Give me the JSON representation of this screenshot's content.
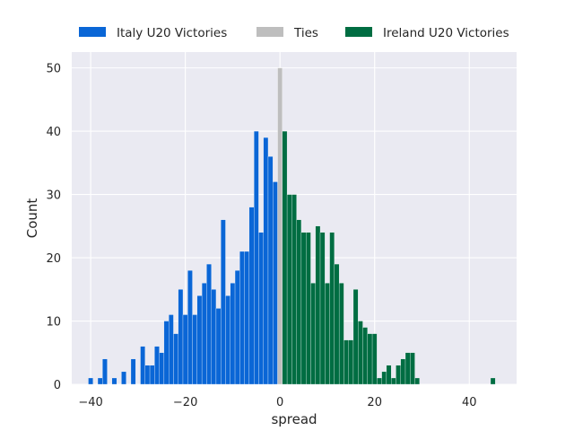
{
  "chart_data": {
    "type": "bar",
    "xlabel": "spread",
    "ylabel": "Count",
    "xlim": [
      -44,
      50
    ],
    "ylim": [
      0,
      52.5
    ],
    "xticks": [
      -40,
      -20,
      0,
      20,
      40
    ],
    "yticks": [
      0,
      10,
      20,
      30,
      40,
      50
    ],
    "xtick_labels": [
      "−40",
      "−20",
      "0",
      "20",
      "40"
    ],
    "ytick_labels": [
      "0",
      "10",
      "20",
      "30",
      "40",
      "50"
    ],
    "grid": true,
    "legend_position": "top",
    "bin_width": 1,
    "series": [
      {
        "name": "Italy U20 Victories",
        "color": "#0a66d6",
        "x": [
          -40,
          -38,
          -37,
          -35,
          -33,
          -31,
          -29,
          -28,
          -27,
          -26,
          -25,
          -24,
          -23,
          -22,
          -21,
          -20,
          -19,
          -18,
          -17,
          -16,
          -15,
          -14,
          -13,
          -12,
          -11,
          -10,
          -9,
          -8,
          -7,
          -6,
          -5,
          -4,
          -3,
          -2,
          -1
        ],
        "values": [
          1,
          1,
          4,
          1,
          2,
          4,
          6,
          3,
          3,
          6,
          5,
          10,
          11,
          8,
          15,
          11,
          18,
          11,
          14,
          16,
          19,
          15,
          12,
          26,
          14,
          16,
          18,
          21,
          21,
          28,
          40,
          24,
          39,
          36,
          32
        ]
      },
      {
        "name": "Ties",
        "color": "#bebebe",
        "x": [
          0
        ],
        "values": [
          50
        ]
      },
      {
        "name": "Ireland U20 Victories",
        "color": "#006d42",
        "x": [
          1,
          2,
          3,
          4,
          5,
          6,
          7,
          8,
          9,
          10,
          11,
          12,
          13,
          14,
          15,
          16,
          17,
          18,
          19,
          20,
          21,
          22,
          23,
          24,
          25,
          26,
          27,
          28,
          29,
          45
        ],
        "values": [
          40,
          30,
          30,
          26,
          24,
          24,
          16,
          25,
          24,
          16,
          24,
          19,
          16,
          7,
          7,
          15,
          10,
          9,
          8,
          8,
          1,
          2,
          3,
          1,
          3,
          4,
          5,
          5,
          1,
          1
        ]
      }
    ]
  }
}
